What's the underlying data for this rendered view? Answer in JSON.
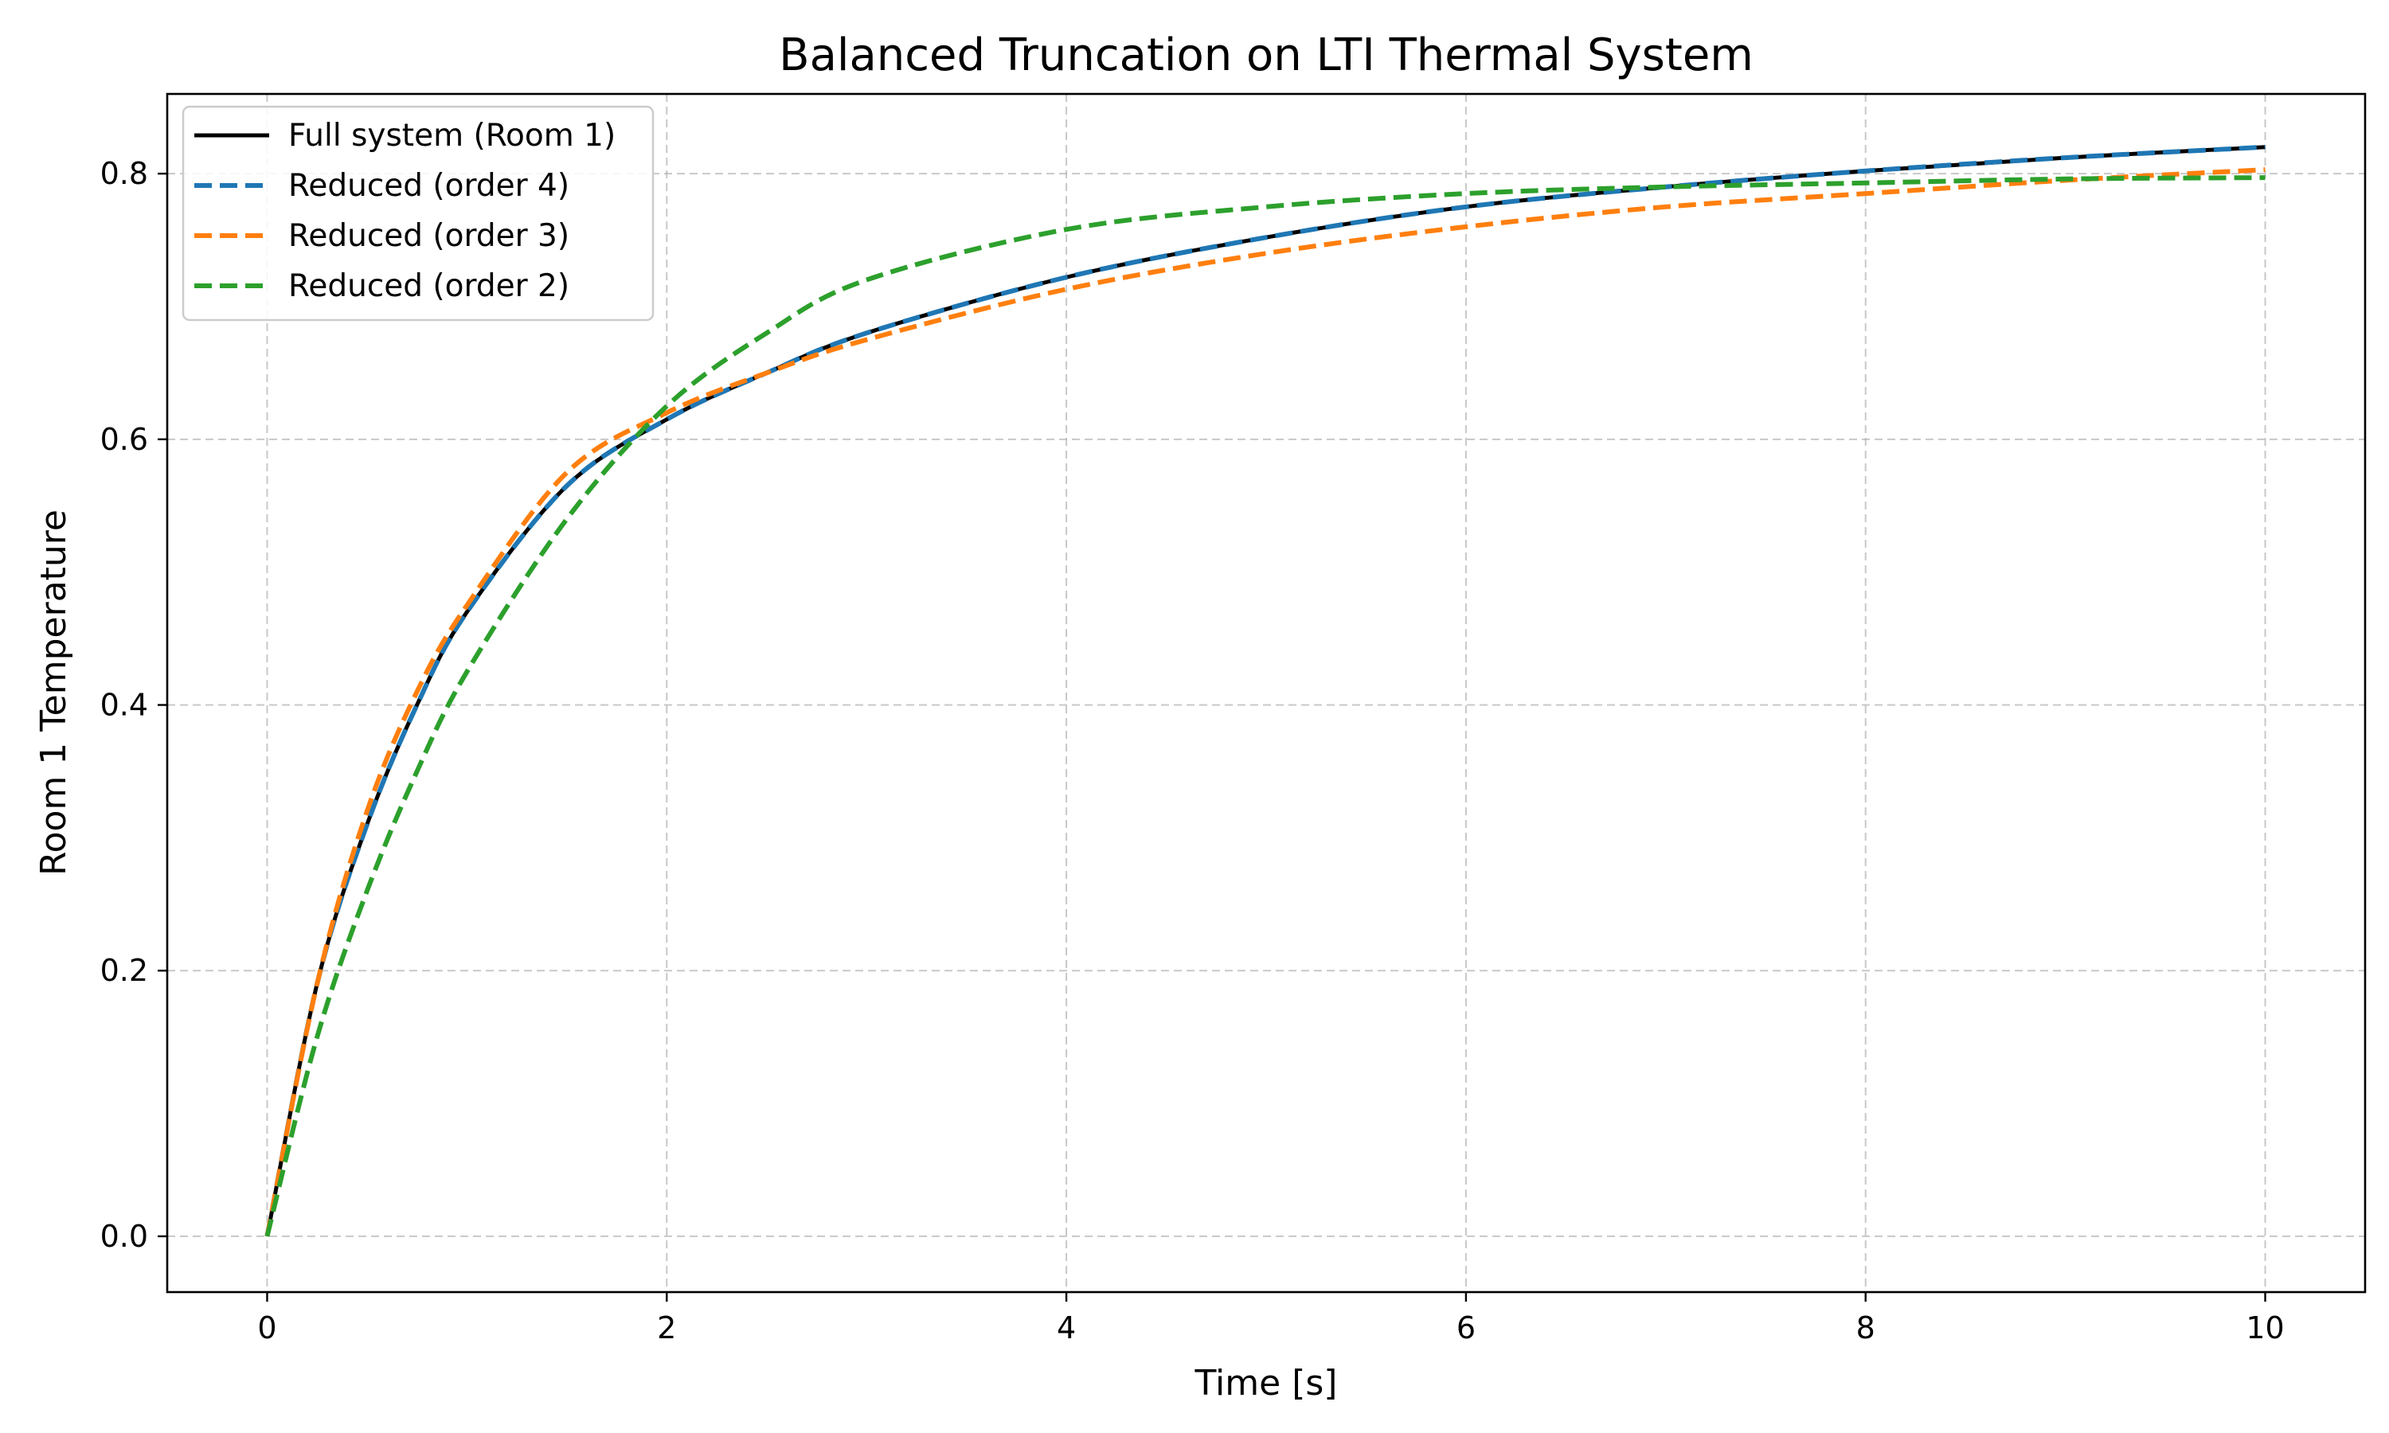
{
  "chart_data": {
    "type": "line",
    "title": "Balanced Truncation on LTI Thermal System",
    "xlabel": "Time [s]",
    "ylabel": "Room 1 Temperature",
    "xlim": [
      -0.5,
      10.5
    ],
    "ylim": [
      -0.042,
      0.86
    ],
    "x_ticks": [
      0,
      2,
      4,
      6,
      8,
      10
    ],
    "y_ticks": [
      0.0,
      0.2,
      0.4,
      0.6,
      0.8
    ],
    "x_tick_labels": [
      "0",
      "2",
      "4",
      "6",
      "8",
      "10"
    ],
    "y_tick_labels": [
      "0.0",
      "0.2",
      "0.4",
      "0.6",
      "0.8"
    ],
    "grid": true,
    "legend_position": "top-left",
    "x": [
      0,
      0.25,
      0.5,
      0.75,
      1.0,
      1.5,
      2.0,
      2.5,
      3.0,
      4.0,
      5.0,
      6.0,
      7.0,
      8.0,
      9.0,
      10.0
    ],
    "series": [
      {
        "name": "Full system (Room 1)",
        "color": "#000000",
        "style": "solid",
        "values": [
          0.0,
          0.19,
          0.31,
          0.4,
          0.47,
          0.565,
          0.615,
          0.65,
          0.68,
          0.722,
          0.752,
          0.775,
          0.79,
          0.802,
          0.812,
          0.82
        ]
      },
      {
        "name": "Reduced (order 4)",
        "color": "#1f77b4",
        "style": "dashed",
        "values": [
          0.0,
          0.19,
          0.31,
          0.4,
          0.47,
          0.565,
          0.615,
          0.65,
          0.68,
          0.722,
          0.752,
          0.775,
          0.79,
          0.802,
          0.812,
          0.82
        ]
      },
      {
        "name": "Reduced (order 3)",
        "color": "#ff7f0e",
        "style": "dashed",
        "values": [
          0.0,
          0.19,
          0.32,
          0.41,
          0.475,
          0.575,
          0.62,
          0.65,
          0.675,
          0.713,
          0.74,
          0.76,
          0.775,
          0.785,
          0.795,
          0.803
        ]
      },
      {
        "name": "Reduced (order 2)",
        "color": "#2ca02c",
        "style": "dashed",
        "values": [
          0.0,
          0.15,
          0.26,
          0.35,
          0.425,
          0.54,
          0.625,
          0.68,
          0.72,
          0.758,
          0.775,
          0.785,
          0.79,
          0.793,
          0.796,
          0.797
        ]
      }
    ]
  }
}
